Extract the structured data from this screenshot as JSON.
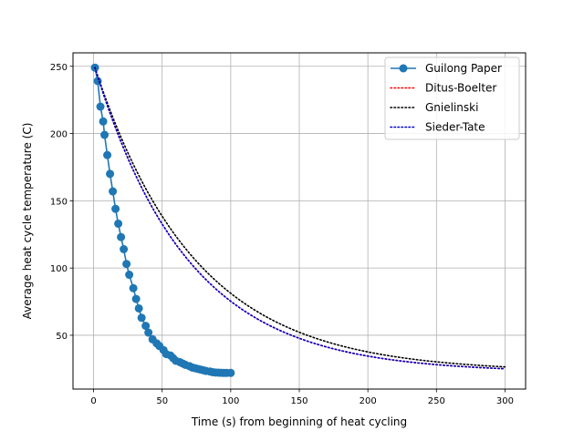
{
  "chart_data": {
    "type": "line",
    "title": "",
    "xlabel": "Time (s) from beginning of heat cycling",
    "ylabel": "Average heat cycle temperature (C)",
    "xlim": [
      -15,
      315
    ],
    "ylim": [
      10,
      260
    ],
    "xticks": [
      0,
      50,
      100,
      150,
      200,
      250,
      300
    ],
    "yticks": [
      50,
      100,
      150,
      200,
      250
    ],
    "grid": true,
    "legend_position": "top-right",
    "series": [
      {
        "name": "Guilong Paper",
        "style": "solid-with-markers",
        "color": "#1f77b4",
        "x": [
          1,
          3,
          5,
          7,
          8,
          10,
          12,
          14,
          16,
          18,
          20,
          22,
          24,
          26,
          29,
          31,
          33,
          35,
          38,
          40,
          43,
          46,
          48,
          51,
          53,
          56,
          58,
          60,
          63,
          65,
          67,
          70,
          72,
          74,
          76,
          78,
          80,
          82,
          85,
          87,
          89,
          91,
          93,
          95,
          97,
          100
        ],
        "y": [
          249,
          239,
          220,
          209,
          199,
          184,
          170,
          157,
          144,
          133,
          123,
          114,
          103,
          95,
          85,
          77,
          70,
          63,
          57,
          52,
          47,
          44,
          42,
          39,
          36,
          35,
          33,
          31,
          30,
          29,
          28,
          27,
          26,
          25.5,
          25,
          24.5,
          24,
          23.5,
          23,
          22.5,
          22.3,
          22.2,
          22.1,
          22,
          22,
          22
        ]
      },
      {
        "name": "Ditus-Boelter",
        "style": "dotted",
        "color": "#ff0000",
        "x": [
          1,
          10,
          20,
          30,
          40,
          50,
          60,
          70,
          80,
          90,
          100,
          110,
          120,
          130,
          140,
          150,
          160,
          170,
          180,
          190,
          200,
          210,
          220,
          230,
          240,
          250,
          260,
          270,
          280,
          290,
          300
        ],
        "y": [
          249,
          216.6,
          187.1,
          162.6,
          142.3,
          125.4,
          111.3,
          99.7,
          90,
          81.9,
          75.3,
          69.7,
          65.1,
          61.3,
          58.1,
          55.5,
          53.3,
          51.5,
          50,
          48.8,
          47.7,
          46.8,
          46.1,
          45.5,
          45,
          44.6,
          44.2,
          43.9,
          43.7,
          43.5,
          22.3
        ]
      },
      {
        "name": "Gnielinski",
        "style": "dotted",
        "color": "#000000",
        "x": [
          1,
          10,
          20,
          30,
          40,
          50,
          60,
          70,
          80,
          90,
          100,
          110,
          120,
          130,
          140,
          150,
          160,
          170,
          180,
          190,
          200,
          210,
          220,
          230,
          240,
          250,
          260,
          270,
          280,
          290,
          300
        ],
        "y": [
          249,
          221.8,
          195.5,
          172.9,
          153.3,
          136.5,
          122,
          109.4,
          98.6,
          89.2,
          81.2,
          74.2,
          68.2,
          63,
          58.5,
          54.6,
          51.3,
          48.4,
          45.9,
          43.8,
          41.9,
          40.3,
          38.9,
          37.7,
          36.7,
          35.8,
          35,
          34.4,
          33.8,
          33.3,
          22.7
        ]
      },
      {
        "name": "Sieder-Tate",
        "style": "dotted",
        "color": "#0000cc",
        "x": [
          1,
          10,
          20,
          30,
          40,
          50,
          60,
          70,
          80,
          90,
          100,
          110,
          120,
          130,
          140,
          150,
          160,
          170,
          180,
          190,
          200,
          210,
          220,
          230,
          240,
          250,
          260,
          270,
          280,
          290,
          300
        ],
        "y": [
          249,
          216.6,
          187.1,
          162.6,
          142.3,
          125.4,
          111.3,
          99.7,
          90,
          81.9,
          75.3,
          69.7,
          65.1,
          61.3,
          58.1,
          55.5,
          53.3,
          51.5,
          50,
          48.8,
          47.7,
          46.8,
          46.1,
          45.5,
          45,
          44.6,
          44.2,
          43.9,
          43.7,
          43.5,
          22.3
        ]
      }
    ]
  }
}
